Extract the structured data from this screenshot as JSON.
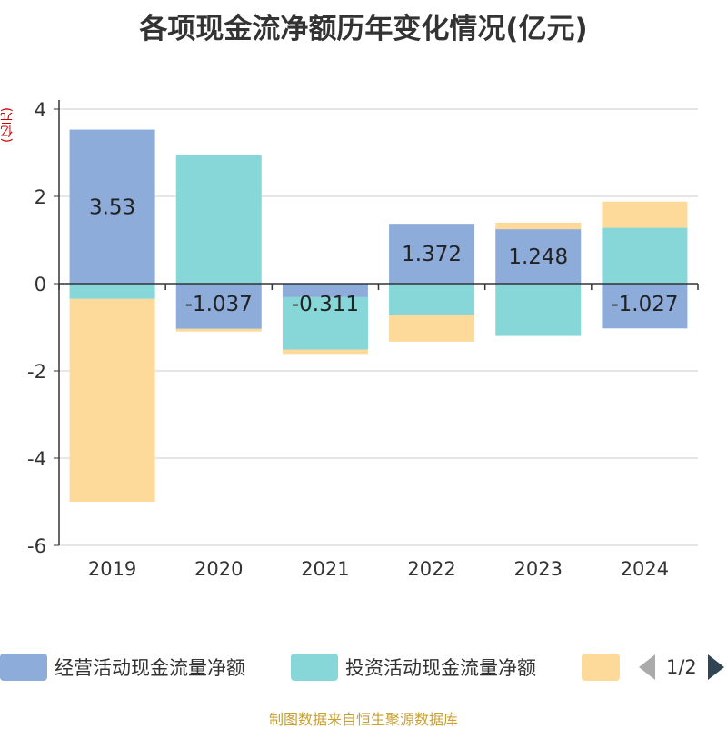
{
  "chart_data": {
    "type": "bar",
    "stacked": true,
    "title": "各项现金流净额历年变化情况(亿元)",
    "unit_label": "(亿元)",
    "categories": [
      "2019",
      "2020",
      "2021",
      "2022",
      "2023",
      "2024"
    ],
    "ylim": [
      -6,
      4
    ],
    "yticks": [
      4,
      2,
      0,
      -2,
      -4,
      -6
    ],
    "grid": true,
    "series": [
      {
        "name": "经营活动现金流量净额",
        "color": "#8eacda",
        "values": [
          3.53,
          -1.037,
          -0.311,
          1.372,
          1.248,
          -1.027
        ]
      },
      {
        "name": "投资活动现金流量净额",
        "color": "#87d6d8",
        "values": [
          -0.35,
          2.95,
          -1.2,
          -0.73,
          -1.2,
          1.28
        ]
      },
      {
        "name": "",
        "color": "#fdd99a",
        "values": [
          -4.65,
          -0.06,
          -0.1,
          -0.6,
          0.15,
          0.6
        ]
      }
    ],
    "data_labels": [
      "3.53",
      "-1.037",
      "-0.311",
      "1.372",
      "1.248",
      "-1.027"
    ],
    "legend_position": "bottom"
  },
  "legend": {
    "page_text": "1/2"
  },
  "source": "制图数据来自恒生聚源数据库"
}
